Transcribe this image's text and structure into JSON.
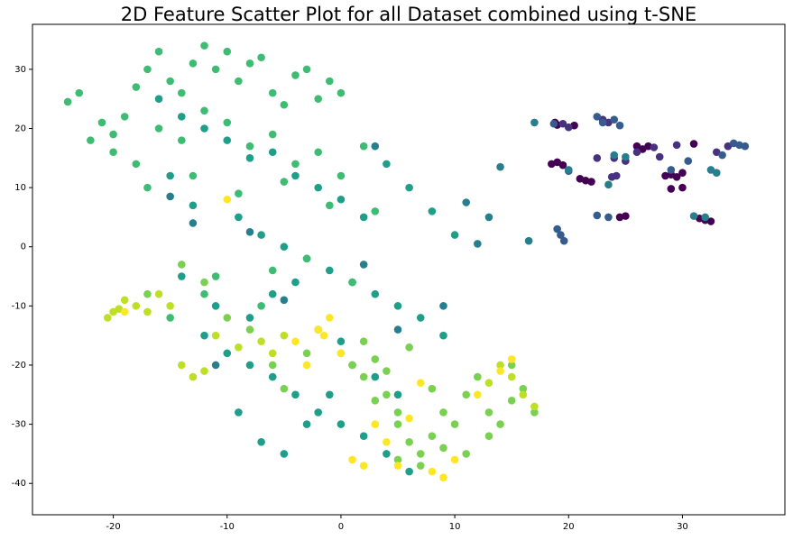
{
  "chart_data": {
    "type": "scatter",
    "title": "2D Feature Scatter Plot for all Dataset combined using t-SNE",
    "xlim": [
      -27.1,
      39
    ],
    "ylim": [
      -45.3,
      37.6
    ],
    "xticks": [
      -20,
      -10,
      0,
      10,
      20,
      30
    ],
    "yticks": [
      -40,
      -30,
      -20,
      -10,
      0,
      10,
      20,
      30
    ],
    "series": [
      {
        "color": "#440154",
        "x": [
          18.5,
          19,
          19.5,
          18.8,
          20.5,
          21,
          22,
          26,
          26.5,
          27,
          28.5,
          29,
          29.5,
          30,
          31,
          31.5,
          32,
          32.5,
          25,
          24.5,
          19,
          30,
          29,
          21.5
        ],
        "values": [
          14,
          14.3,
          13.8,
          21,
          20.5,
          11.5,
          11,
          17,
          16.5,
          17,
          12,
          12.2,
          11.8,
          12.5,
          17.4,
          4.8,
          4.5,
          4.3,
          5.2,
          5,
          20.6,
          10,
          9.8,
          11.2
        ]
      },
      {
        "color": "#46327e",
        "x": [
          19.5,
          20,
          23,
          23.5,
          24,
          25,
          26,
          27.5,
          28,
          33,
          34,
          22.5,
          29.5,
          24.2,
          23.8
        ],
        "values": [
          20.8,
          20.2,
          21.5,
          21,
          15,
          14.5,
          16,
          16.8,
          15.2,
          16,
          17,
          15,
          17.2,
          12,
          11.8
        ]
      },
      {
        "color": "#365c8d",
        "x": [
          22.5,
          23,
          24,
          24.5,
          19,
          19.3,
          19.6,
          22.5,
          23.5,
          34.5,
          35,
          35.5,
          33.5,
          29,
          30.5,
          20,
          18.7
        ],
        "values": [
          22,
          21,
          21.5,
          20.5,
          3,
          2,
          1,
          5.3,
          5,
          17.5,
          17.2,
          17,
          15.5,
          13,
          14.5,
          12.8,
          20.8
        ]
      },
      {
        "color": "#277f8e",
        "x": [
          24,
          25,
          23.5,
          32,
          31,
          33,
          32.5,
          14,
          17,
          20,
          16.5,
          13,
          12,
          11,
          -15,
          -13,
          -8,
          -5,
          2,
          5,
          9,
          3,
          -11
        ],
        "values": [
          15.5,
          15.2,
          10.5,
          5,
          5.2,
          12.5,
          13,
          13.5,
          21,
          13,
          1,
          5,
          0.5,
          7.5,
          8.5,
          4,
          2.5,
          -9,
          -3,
          -14,
          -10,
          17,
          -20
        ]
      },
      {
        "color": "#1f9e89",
        "x": [
          -16,
          -14,
          -12,
          -10,
          -8,
          -6,
          -4,
          -2,
          0,
          2,
          4,
          6,
          8,
          10,
          -15,
          -13,
          -9,
          -7,
          -5,
          -3,
          -1,
          1,
          3,
          5,
          7,
          9,
          -12,
          -10,
          -8,
          -6,
          -4,
          -2,
          0,
          2,
          4,
          6,
          -9,
          -7,
          -5,
          -3,
          -1,
          1,
          3,
          5,
          -14,
          -11,
          -8,
          -6,
          -4,
          -2,
          0
        ],
        "values": [
          25,
          22,
          20,
          18,
          15,
          16,
          12,
          10,
          8,
          5,
          14,
          10,
          6,
          2,
          12,
          7,
          5,
          2,
          0,
          -2,
          -4,
          -6,
          -8,
          -10,
          -12,
          -15,
          -15,
          -18,
          -20,
          -22,
          -25,
          -28,
          -30,
          -32,
          -35,
          -38,
          -28,
          -33,
          -35,
          -30,
          -25,
          -20,
          -22,
          -25,
          -5,
          -10,
          -12,
          -8,
          -6,
          -14,
          -16
        ]
      },
      {
        "color": "#3fbc73",
        "x": [
          -24,
          -23,
          -22,
          -21,
          -20,
          -19,
          -18,
          -17,
          -16,
          -15,
          -14,
          -13,
          -12,
          -11,
          -10,
          -9,
          -8,
          -7,
          -6,
          -5,
          -4,
          -3,
          -2,
          -1,
          0,
          -20,
          -18,
          -16,
          -14,
          -12,
          -10,
          -8,
          -6,
          -4,
          -2,
          0,
          2,
          -17,
          -13,
          -9,
          -5,
          -1,
          3,
          -11,
          -7,
          -3,
          1,
          -15,
          -12,
          -6
        ],
        "values": [
          24.5,
          26,
          18,
          21,
          19,
          22,
          27,
          30,
          33,
          28,
          26,
          31,
          34,
          30,
          33,
          28,
          31,
          32,
          26,
          24,
          29,
          30,
          25,
          28,
          26,
          16,
          14,
          20,
          18,
          23,
          21,
          17,
          19,
          14,
          16,
          12,
          17,
          10,
          12,
          9,
          11,
          7,
          6,
          -5,
          -10,
          -2,
          -6,
          -12,
          -8,
          -4
        ]
      },
      {
        "color": "#7ad151",
        "x": [
          0,
          1,
          2,
          3,
          4,
          5,
          6,
          7,
          8,
          9,
          10,
          2,
          4,
          6,
          8,
          5,
          7,
          9,
          -10,
          -8,
          -6,
          -5,
          -3,
          3,
          5,
          11,
          12,
          13,
          14,
          15,
          16,
          17,
          11,
          13,
          15,
          -12,
          -17,
          -14
        ],
        "values": [
          -18,
          -20,
          -22,
          -19,
          -25,
          -30,
          -33,
          -35,
          -32,
          -28,
          -30,
          -16,
          -21,
          -17,
          -24,
          -36,
          -37,
          -34,
          -12,
          -14,
          -20,
          -24,
          -18,
          -26,
          -28,
          -25,
          -22,
          -28,
          -30,
          -26,
          -24,
          -28,
          -35,
          -32,
          -20,
          -6,
          -8,
          -3
        ]
      },
      {
        "color": "#bddf26",
        "x": [
          -20.5,
          -20,
          -19.5,
          -19,
          -18,
          -17,
          -16,
          -15,
          -14,
          -13,
          -12,
          -7,
          -6,
          -5,
          15,
          16,
          17,
          14,
          13,
          -11,
          -9
        ],
        "values": [
          -12,
          -11,
          -10.5,
          -9,
          -10,
          -11,
          -8,
          -10,
          -20,
          -22,
          -21,
          -16,
          -18,
          -15,
          -22,
          -25,
          -27,
          -20,
          -23,
          -15,
          -17
        ]
      },
      {
        "color": "#fde725",
        "x": [
          -10,
          -2,
          -1.5,
          -1,
          0,
          1,
          2,
          3,
          4,
          5,
          6,
          7,
          8,
          9,
          10,
          -4,
          -3,
          14,
          15,
          12,
          -19
        ],
        "values": [
          8,
          -14,
          -15,
          -12,
          -18,
          -36,
          -37,
          -30,
          -33,
          -37,
          -29,
          -23,
          -38,
          -39,
          -36,
          -16,
          -20,
          -21,
          -19,
          -25,
          -11
        ]
      }
    ]
  }
}
